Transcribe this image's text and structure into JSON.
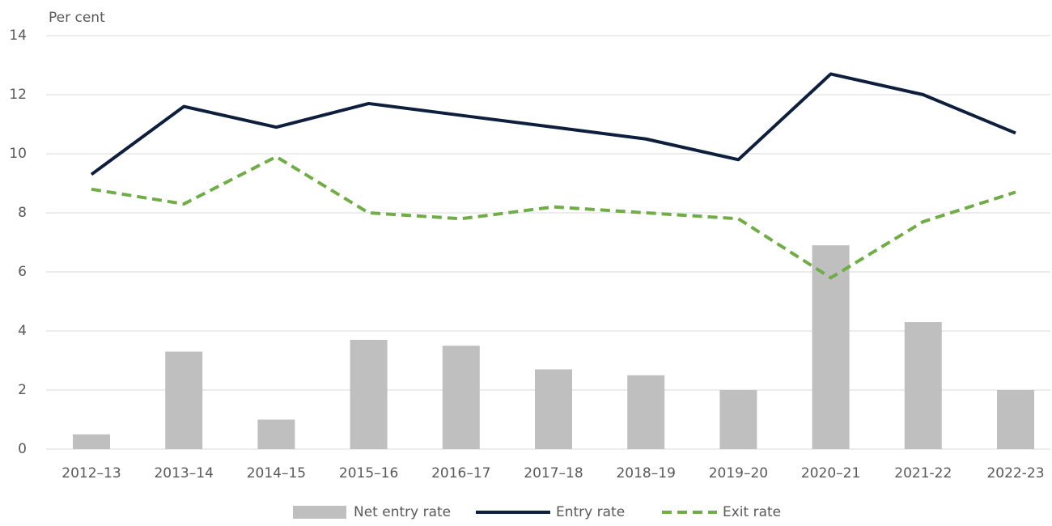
{
  "chart_data": {
    "type": "bar",
    "ylabel": "Per cent",
    "categories": [
      "2012–13",
      "2013–14",
      "2014–15",
      "2015–16",
      "2016–17",
      "2017–18",
      "2018–19",
      "2019–20",
      "2020–21",
      "2021-22",
      "2022-23"
    ],
    "series": [
      {
        "name": "Net entry rate",
        "type": "bar",
        "color": "#bfbfbf",
        "values": [
          0.5,
          3.3,
          1.0,
          3.7,
          3.5,
          2.7,
          2.5,
          2.0,
          6.9,
          4.3,
          2.0
        ]
      },
      {
        "name": "Entry rate",
        "type": "line",
        "color": "#0d1f3c",
        "dashed": false,
        "values": [
          9.3,
          11.6,
          10.9,
          11.7,
          11.3,
          10.9,
          10.5,
          9.8,
          12.7,
          12.0,
          10.7
        ]
      },
      {
        "name": "Exit rate",
        "type": "line",
        "color": "#70ad47",
        "dashed": true,
        "values": [
          8.8,
          8.3,
          9.9,
          8.0,
          7.8,
          8.2,
          8.0,
          7.8,
          5.8,
          7.7,
          8.7
        ]
      }
    ],
    "ylim": [
      0,
      14
    ],
    "yticks": [
      0,
      2,
      4,
      6,
      8,
      10,
      12,
      14
    ],
    "grid": true,
    "legend": "bottom"
  }
}
